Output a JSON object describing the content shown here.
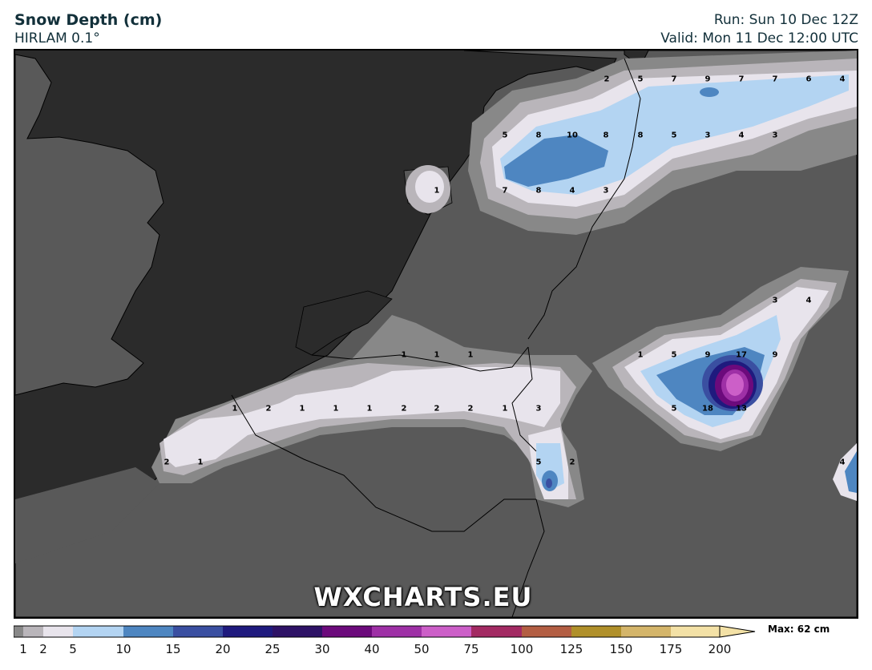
{
  "header": {
    "title": "Snow Depth (cm)",
    "model": "HIRLAM 0.1°",
    "run": "Run: Sun 10 Dec 12Z",
    "valid": "Valid: Mon 11 Dec 12:00 UTC"
  },
  "watermark": "WXCHARTS.EU",
  "legend": {
    "max_label": "Max: 62 cm",
    "ticks": [
      "1",
      "2",
      "5",
      "10",
      "15",
      "20",
      "25",
      "30",
      "40",
      "50",
      "75",
      "100",
      "125",
      "150",
      "175",
      "200"
    ],
    "colors": [
      "#888888",
      "#b9b5ba",
      "#e8e4ec",
      "#b3d4f2",
      "#4e86c1",
      "#3a4fa1",
      "#1f1a7e",
      "#2e1266",
      "#6c0a7c",
      "#9e30a6",
      "#cc5fc8",
      "#a32a63",
      "#b35e43",
      "#b0902a",
      "#d4b56a",
      "#f3e1a6"
    ]
  },
  "map_labels": [
    {
      "name": "nl-north-1",
      "text": "2"
    },
    {
      "name": "nl-north-2",
      "text": "5"
    },
    {
      "name": "nl-north-3",
      "text": "7"
    },
    {
      "name": "nl-north-4",
      "text": "9"
    },
    {
      "name": "nl-north-5",
      "text": "7"
    },
    {
      "name": "nl-north-6",
      "text": "7"
    },
    {
      "name": "nl-north-7",
      "text": "6"
    },
    {
      "name": "nl-north-8",
      "text": "4"
    },
    {
      "name": "nl-mid-1",
      "text": "5"
    },
    {
      "name": "nl-mid-2",
      "text": "8"
    },
    {
      "name": "nl-mid-3",
      "text": "10"
    },
    {
      "name": "nl-mid-4",
      "text": "8"
    },
    {
      "name": "nl-mid-5",
      "text": "8"
    },
    {
      "name": "nl-mid-6",
      "text": "5"
    },
    {
      "name": "nl-mid-7",
      "text": "3"
    },
    {
      "name": "nl-mid-8",
      "text": "4"
    },
    {
      "name": "nl-mid-9",
      "text": "3"
    },
    {
      "name": "texel",
      "text": "1"
    },
    {
      "name": "nl-south-1",
      "text": "7"
    },
    {
      "name": "nl-south-2",
      "text": "8"
    },
    {
      "name": "nl-south-3",
      "text": "4"
    },
    {
      "name": "nl-south-4",
      "text": "3"
    },
    {
      "name": "de-e-1",
      "text": "3"
    },
    {
      "name": "de-e-2",
      "text": "4"
    },
    {
      "name": "de-c-1",
      "text": "1"
    },
    {
      "name": "de-c-2",
      "text": "5"
    },
    {
      "name": "de-c-3",
      "text": "9"
    },
    {
      "name": "de-c-4",
      "text": "17"
    },
    {
      "name": "de-c-5",
      "text": "9"
    },
    {
      "name": "de-c-6",
      "text": "5"
    },
    {
      "name": "de-c-7",
      "text": "18"
    },
    {
      "name": "de-c-8",
      "text": "13"
    },
    {
      "name": "be-1",
      "text": "1"
    },
    {
      "name": "be-2",
      "text": "1"
    },
    {
      "name": "be-3",
      "text": "1"
    },
    {
      "name": "band-1",
      "text": "1"
    },
    {
      "name": "band-2",
      "text": "2"
    },
    {
      "name": "band-3",
      "text": "1"
    },
    {
      "name": "band-4",
      "text": "1"
    },
    {
      "name": "band-5",
      "text": "1"
    },
    {
      "name": "band-6",
      "text": "2"
    },
    {
      "name": "band-7",
      "text": "2"
    },
    {
      "name": "band-8",
      "text": "2"
    },
    {
      "name": "band-9",
      "text": "1"
    },
    {
      "name": "band-10",
      "text": "3"
    },
    {
      "name": "fr-1",
      "text": "2"
    },
    {
      "name": "fr-2",
      "text": "1"
    },
    {
      "name": "lux-1",
      "text": "5"
    },
    {
      "name": "lux-2",
      "text": "2"
    },
    {
      "name": "east-edge",
      "text": "4"
    }
  ]
}
